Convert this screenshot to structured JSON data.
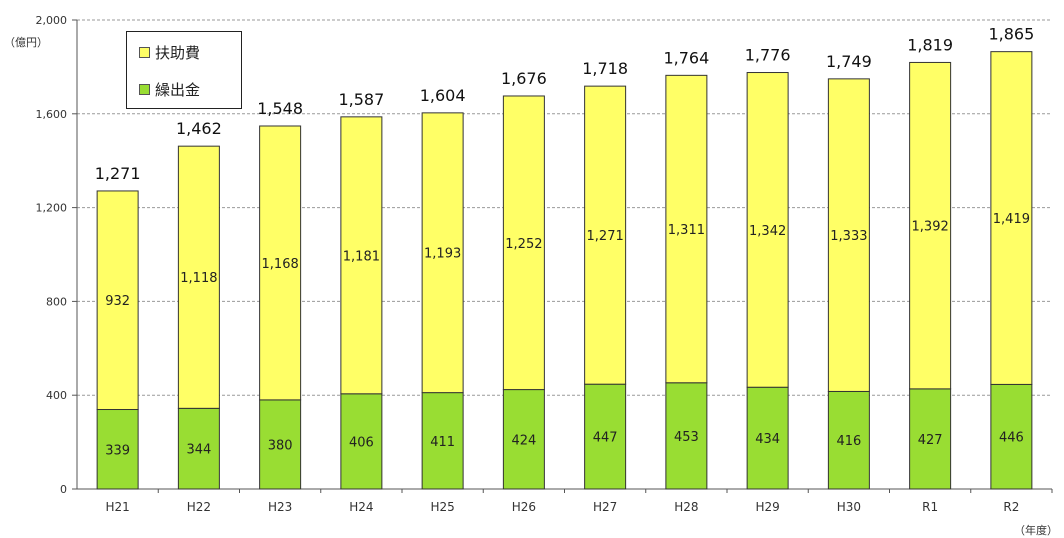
{
  "chart_data": {
    "type": "bar",
    "stacked": true,
    "categories": [
      "H21",
      "H22",
      "H23",
      "H24",
      "H25",
      "H26",
      "H27",
      "H28",
      "H29",
      "H30",
      "R1",
      "R2"
    ],
    "series": [
      {
        "name": "繰出金",
        "color": "#99dd33",
        "values": [
          339,
          344,
          380,
          406,
          411,
          424,
          447,
          453,
          434,
          416,
          427,
          446
        ]
      },
      {
        "name": "扶助費",
        "color": "#ffff66",
        "values": [
          932,
          1118,
          1168,
          1181,
          1193,
          1252,
          1271,
          1311,
          1342,
          1333,
          1392,
          1419
        ]
      }
    ],
    "totals": [
      "1,271",
      "1,462",
      "1,548",
      "1,587",
      "1,604",
      "1,676",
      "1,718",
      "1,764",
      "1,776",
      "1,749",
      "1,819",
      "1,865"
    ],
    "y_unit": "（億円）",
    "x_unit": "（年度）",
    "ylim": [
      0,
      2000
    ],
    "yticks": [
      0,
      400,
      800,
      1200,
      1600,
      2000
    ],
    "ytick_labels": [
      "0",
      "400",
      "800",
      "1,200",
      "1,600",
      "2,000"
    ],
    "grid": true,
    "legend_position": "top-left"
  },
  "legend": {
    "item1": "扶助費",
    "item2": "繰出金"
  }
}
